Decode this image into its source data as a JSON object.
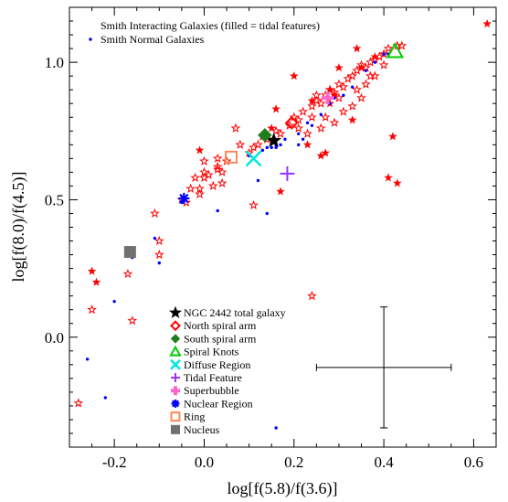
{
  "chart_data": {
    "type": "scatter",
    "xlabel": "log[f(5.8)/f(3.6)]",
    "ylabel": "log[f(8.0)/f(4.5)]",
    "xlim": [
      -0.3,
      0.65
    ],
    "ylim": [
      -0.4,
      1.2
    ],
    "x_ticks": [
      -0.2,
      0.0,
      0.2,
      0.4,
      0.6
    ],
    "x_tick_labels": [
      "-0.2",
      "0.0",
      "0.2",
      "0.4",
      "0.6"
    ],
    "y_ticks": [
      0.0,
      0.5,
      1.0
    ],
    "y_tick_labels": [
      "0.0",
      "0.5",
      "1.0"
    ],
    "legend_top": [
      {
        "label": "Smith Interacting Galaxies (filled = tidal features)",
        "marker": "star",
        "color": "#ff0000"
      },
      {
        "label": "Smith Normal Galaxies",
        "marker": "dot",
        "color": "#0000ff"
      }
    ],
    "series": [
      {
        "marker": "open-star",
        "color": "#ff0000",
        "points": [
          [
            -0.28,
            -0.24
          ],
          [
            -0.25,
            0.1
          ],
          [
            -0.17,
            0.23
          ],
          [
            -0.16,
            0.06
          ],
          [
            -0.11,
            0.45
          ],
          [
            -0.1,
            0.35
          ],
          [
            -0.1,
            0.3
          ],
          [
            -0.05,
            0.5
          ],
          [
            -0.04,
            0.49
          ],
          [
            -0.03,
            0.54
          ],
          [
            -0.02,
            0.58
          ],
          [
            -0.01,
            0.54
          ],
          [
            0.0,
            0.6
          ],
          [
            0.01,
            0.59
          ],
          [
            0.02,
            0.55
          ],
          [
            0.03,
            0.61
          ],
          [
            0.04,
            0.6
          ],
          [
            0.0,
            0.64
          ],
          [
            0.03,
            0.65
          ],
          [
            0.05,
            0.64
          ],
          [
            0.08,
            0.7
          ],
          [
            0.1,
            0.67
          ],
          [
            0.11,
            0.69
          ],
          [
            0.12,
            0.7
          ],
          [
            0.13,
            0.73
          ],
          [
            0.14,
            0.72
          ],
          [
            0.16,
            0.75
          ],
          [
            0.17,
            0.74
          ],
          [
            0.19,
            0.77
          ],
          [
            0.2,
            0.8
          ],
          [
            0.21,
            0.79
          ],
          [
            0.22,
            0.82
          ],
          [
            0.24,
            0.84
          ],
          [
            0.25,
            0.86
          ],
          [
            0.26,
            0.85
          ],
          [
            0.27,
            0.88
          ],
          [
            0.28,
            0.9
          ],
          [
            0.29,
            0.89
          ],
          [
            0.3,
            0.92
          ],
          [
            0.31,
            0.91
          ],
          [
            0.32,
            0.94
          ],
          [
            0.33,
            0.95
          ],
          [
            0.34,
            0.97
          ],
          [
            0.35,
            0.99
          ],
          [
            0.36,
            0.98
          ],
          [
            0.37,
            1.0
          ],
          [
            0.38,
            1.01
          ],
          [
            0.39,
            1.02
          ],
          [
            0.4,
            1.03
          ],
          [
            0.41,
            1.05
          ],
          [
            0.43,
            1.06
          ],
          [
            0.44,
            1.06
          ],
          [
            0.37,
            0.95
          ],
          [
            0.35,
            0.87
          ],
          [
            0.33,
            0.84
          ],
          [
            0.31,
            0.82
          ],
          [
            0.29,
            0.78
          ],
          [
            0.27,
            0.8
          ],
          [
            0.25,
            0.88
          ],
          [
            0.38,
            0.95
          ],
          [
            0.4,
            0.99
          ],
          [
            0.34,
            0.9
          ],
          [
            0.36,
            0.92
          ],
          [
            0.3,
            0.87
          ],
          [
            0.26,
            0.76
          ],
          [
            0.24,
            0.8
          ],
          [
            0.23,
            0.74
          ],
          [
            0.07,
            0.76
          ],
          [
            0.11,
            0.48
          ],
          [
            0.04,
            0.56
          ],
          [
            -0.01,
            0.52
          ],
          [
            0.03,
            0.62
          ],
          [
            0.0,
            0.58
          ],
          [
            0.24,
            0.15
          ],
          [
            0.21,
            0.76
          ]
        ]
      },
      {
        "marker": "filled-star",
        "color": "#ff0000",
        "points": [
          [
            -0.25,
            0.24
          ],
          [
            -0.24,
            0.2
          ],
          [
            -0.01,
            0.68
          ],
          [
            0.15,
            0.76
          ],
          [
            0.17,
            0.53
          ],
          [
            0.23,
            0.7
          ],
          [
            0.24,
            0.86
          ],
          [
            0.27,
            0.67
          ],
          [
            0.28,
            0.9
          ],
          [
            0.3,
            0.98
          ],
          [
            0.34,
            1.05
          ],
          [
            0.35,
            0.98
          ],
          [
            0.41,
            0.58
          ],
          [
            0.42,
            0.73
          ],
          [
            0.43,
            0.56
          ],
          [
            0.63,
            1.14
          ],
          [
            0.38,
            1.02
          ],
          [
            0.2,
            0.95
          ],
          [
            0.16,
            0.83
          ],
          [
            0.29,
            0.88
          ],
          [
            0.26,
            0.66
          ],
          [
            0.33,
            0.79
          ],
          [
            0.28,
            0.85
          ]
        ]
      },
      {
        "marker": "dot",
        "color": "#0000ff",
        "points": [
          [
            -0.26,
            -0.08
          ],
          [
            -0.22,
            -0.22
          ],
          [
            -0.2,
            0.13
          ],
          [
            -0.16,
            0.3
          ],
          [
            -0.16,
            0.29
          ],
          [
            -0.11,
            0.36
          ],
          [
            -0.1,
            0.27
          ],
          [
            -0.05,
            0.49
          ],
          [
            0.03,
            0.46
          ],
          [
            0.1,
            0.66
          ],
          [
            0.12,
            0.57
          ],
          [
            0.13,
            0.68
          ],
          [
            0.14,
            0.69
          ],
          [
            0.15,
            0.69
          ],
          [
            0.16,
            0.69
          ],
          [
            0.16,
            0.7
          ],
          [
            0.17,
            0.7
          ],
          [
            0.18,
            0.72
          ],
          [
            0.21,
            0.7
          ],
          [
            0.21,
            0.74
          ],
          [
            0.22,
            0.72
          ],
          [
            0.23,
            0.78
          ],
          [
            0.24,
            0.77
          ],
          [
            0.26,
            0.81
          ],
          [
            0.28,
            0.85
          ],
          [
            0.29,
            0.87
          ],
          [
            0.31,
            0.88
          ],
          [
            0.33,
            0.91
          ],
          [
            0.36,
            0.97
          ],
          [
            0.38,
            1.0
          ],
          [
            0.4,
            1.03
          ],
          [
            0.41,
            1.03
          ],
          [
            0.14,
            0.45
          ],
          [
            0.16,
            -0.33
          ]
        ]
      }
    ],
    "special_points": [
      {
        "label": "NGC 2442 total galaxy",
        "marker": "filled-star",
        "color": "#000000",
        "x": 0.155,
        "y": 0.715
      },
      {
        "label": "North spiral arm",
        "marker": "open-diamond",
        "color": "#ff0000",
        "x": 0.195,
        "y": 0.78
      },
      {
        "label": "South spiral arm",
        "marker": "filled-diamond",
        "color": "#1e7d1e",
        "x": 0.135,
        "y": 0.735
      },
      {
        "label": "Spiral Knots",
        "marker": "open-triangle",
        "color": "#00cc00",
        "x": 0.425,
        "y": 1.04
      },
      {
        "label": "Diffuse Region",
        "marker": "x",
        "color": "#00e5e5",
        "x": 0.11,
        "y": 0.65
      },
      {
        "label": "Tidal Feature",
        "marker": "plus",
        "color": "#9933ff",
        "x": 0.185,
        "y": 0.595
      },
      {
        "label": "Superbubble",
        "marker": "filled-plus",
        "color": "#ff66cc",
        "x": 0.275,
        "y": 0.87
      },
      {
        "label": "Nuclear Region",
        "marker": "asterisk",
        "color": "#0000ff",
        "x": -0.045,
        "y": 0.505
      },
      {
        "label": "Ring",
        "marker": "open-square",
        "color": "#ff8855",
        "x": 0.06,
        "y": 0.655
      },
      {
        "label": "Nucleus",
        "marker": "filled-square",
        "color": "#707070",
        "x": -0.165,
        "y": 0.31
      }
    ],
    "error_bar": {
      "x": 0.4,
      "y": -0.11,
      "x_err": 0.15,
      "y_err": 0.22
    }
  }
}
